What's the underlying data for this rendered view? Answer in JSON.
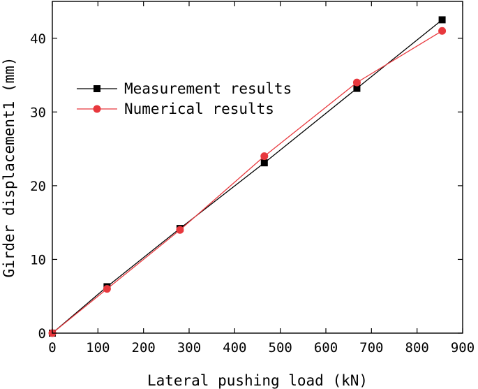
{
  "chart_data": {
    "type": "line",
    "xlabel": "Lateral pushing load (kN)",
    "ylabel": "Girder displacement1 (mm)",
    "xlim": [
      0,
      900
    ],
    "ylim": [
      0,
      45
    ],
    "xticks": [
      0,
      100,
      200,
      300,
      400,
      500,
      600,
      700,
      800,
      900
    ],
    "yticks": [
      0,
      10,
      20,
      30,
      40
    ],
    "grid": false,
    "legend_position": "upper-left",
    "series": [
      {
        "name": "Measurement results",
        "color": "#000000",
        "marker": "square",
        "x": [
          0,
          120,
          280,
          465,
          668,
          855
        ],
        "y": [
          0,
          6.3,
          14.2,
          23.1,
          33.2,
          42.5
        ]
      },
      {
        "name": "Numerical results",
        "color": "#e8383d",
        "marker": "circle",
        "x": [
          0,
          120,
          280,
          465,
          668,
          855
        ],
        "y": [
          0,
          6.0,
          14.0,
          24.0,
          34.0,
          41.0
        ]
      }
    ]
  }
}
